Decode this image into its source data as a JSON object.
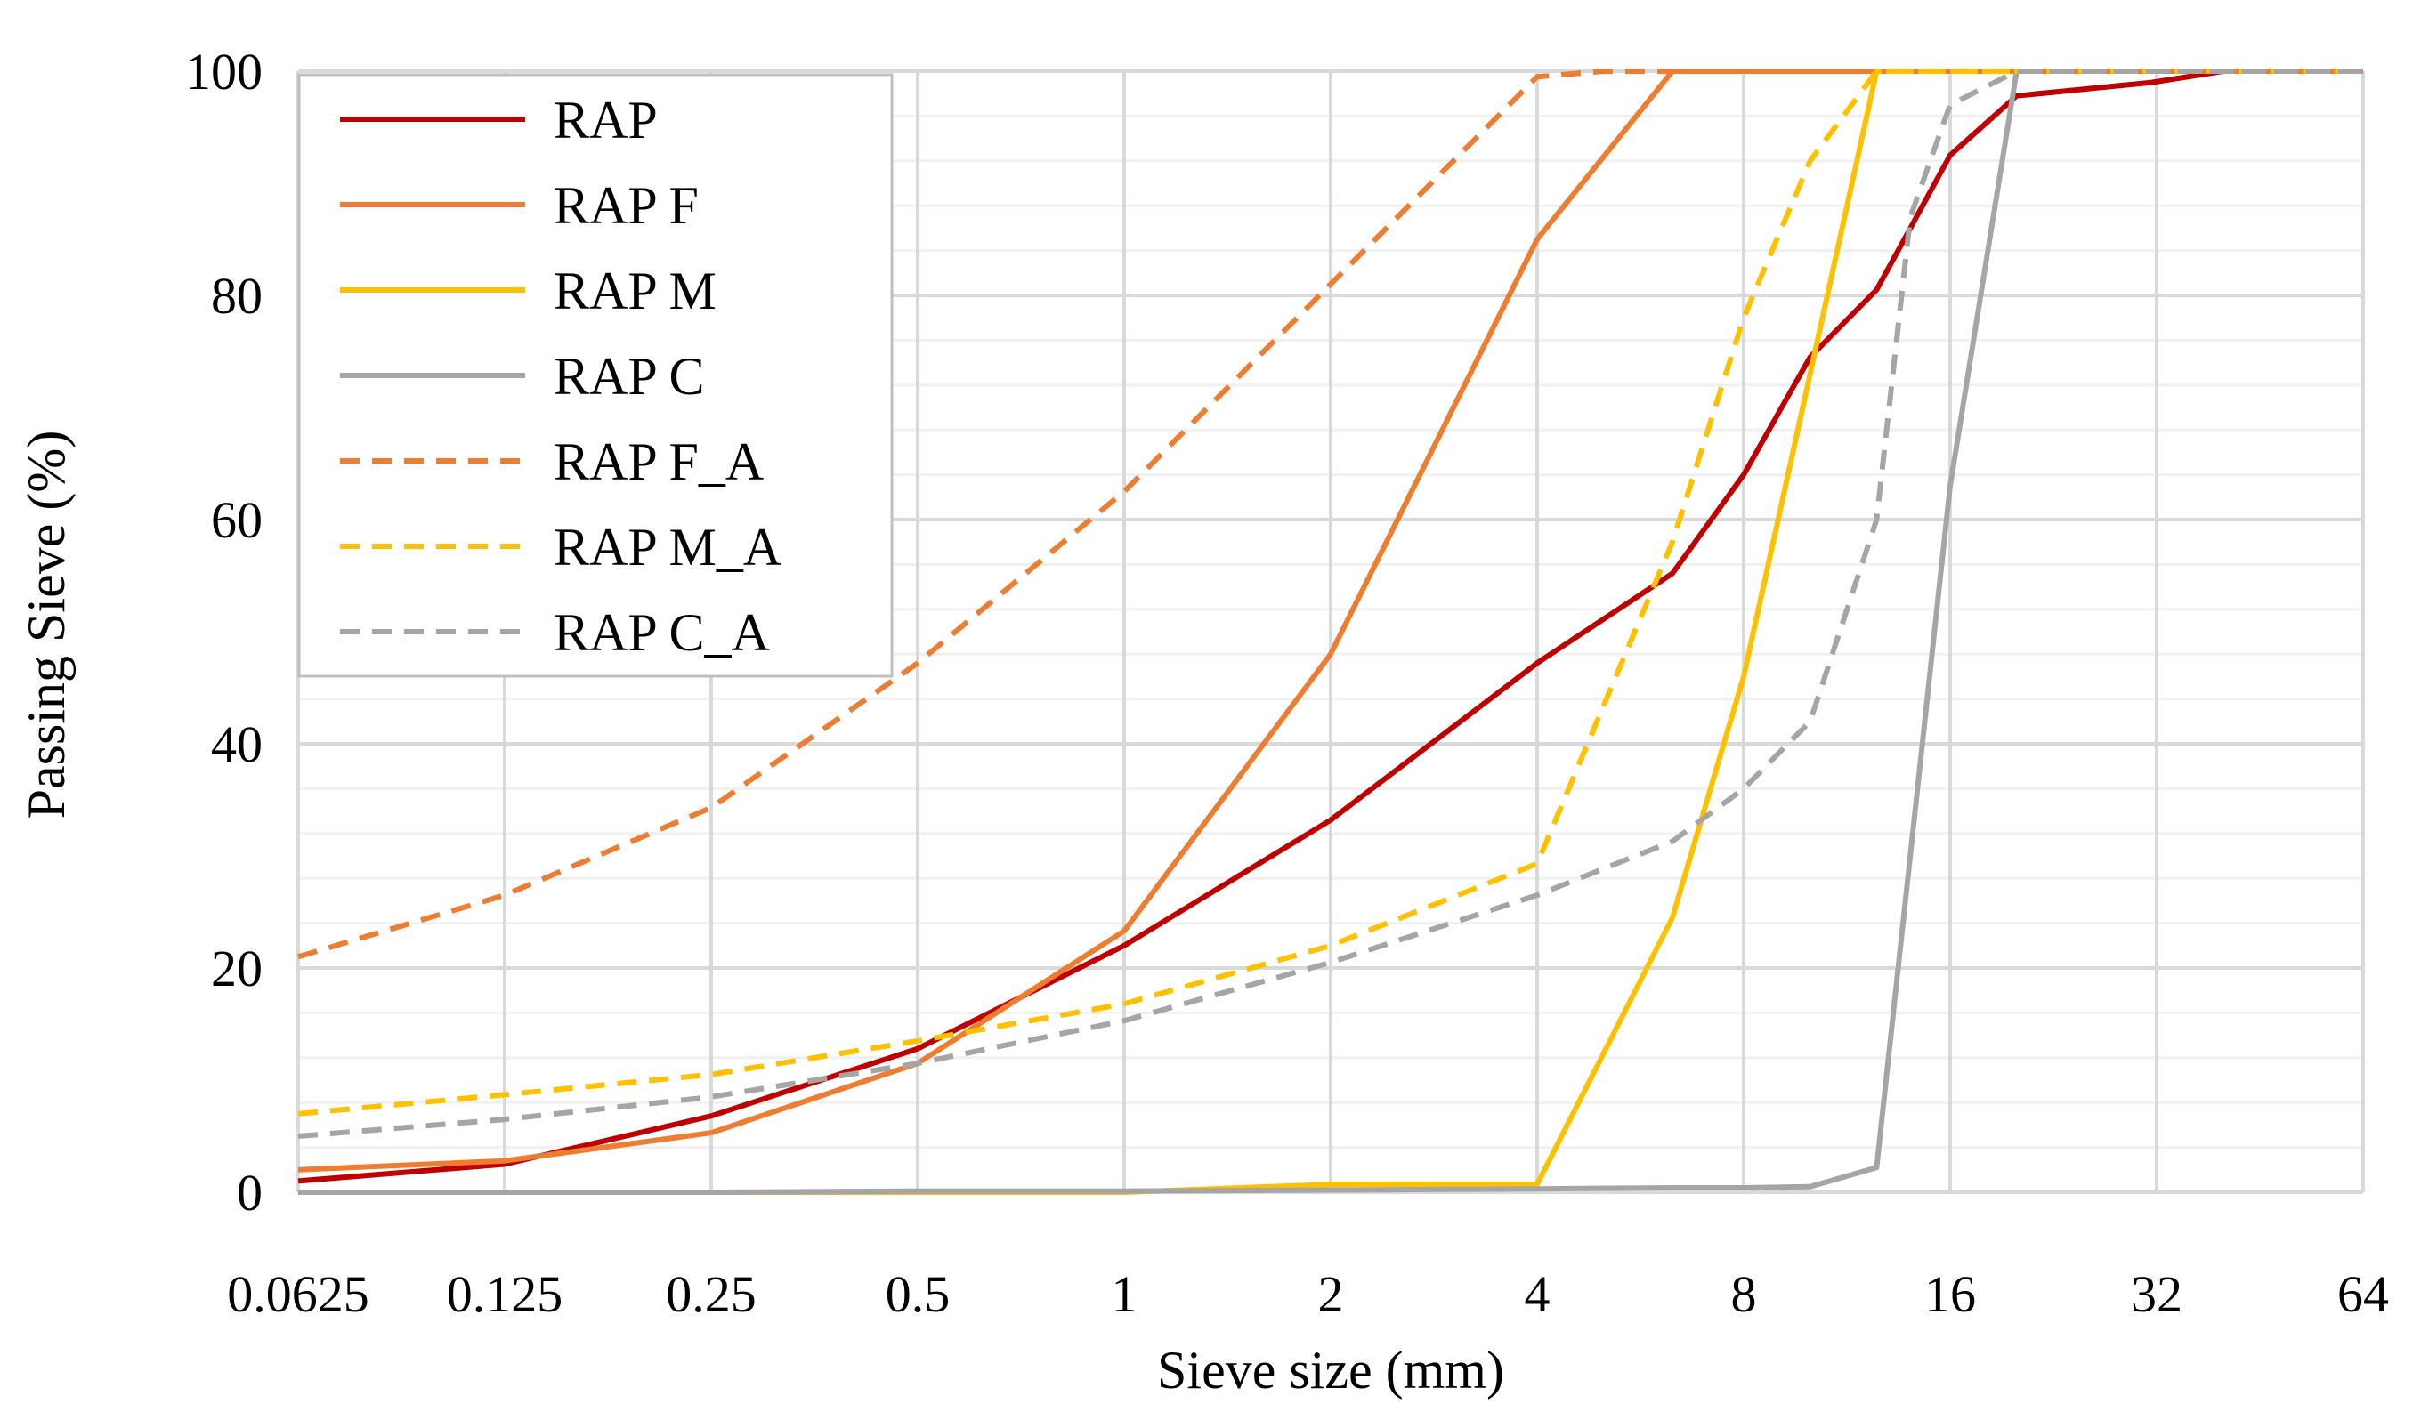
{
  "chart_data": {
    "type": "line",
    "title": "",
    "xlabel": "Sieve size (mm)",
    "ylabel": "Passing Sieve (%)",
    "x_scale": "log2",
    "xlim": [
      0.0625,
      64
    ],
    "ylim": [
      0,
      100
    ],
    "x_ticks": [
      {
        "value": 0.0625,
        "label": "0.0625"
      },
      {
        "value": 0.125,
        "label": "0.125"
      },
      {
        "value": 0.25,
        "label": "0.25"
      },
      {
        "value": 0.5,
        "label": "0.5"
      },
      {
        "value": 1,
        "label": "1"
      },
      {
        "value": 2,
        "label": "2"
      },
      {
        "value": 4,
        "label": "4"
      },
      {
        "value": 8,
        "label": "8"
      },
      {
        "value": 16,
        "label": "16"
      },
      {
        "value": 32,
        "label": "32"
      },
      {
        "value": 64,
        "label": "64"
      }
    ],
    "y_ticks": [
      {
        "value": 0,
        "label": "0"
      },
      {
        "value": 20,
        "label": "20"
      },
      {
        "value": 40,
        "label": "40"
      },
      {
        "value": 60,
        "label": "60"
      },
      {
        "value": 80,
        "label": "80"
      },
      {
        "value": 100,
        "label": "100"
      }
    ],
    "y_minor_step": 4,
    "grid": true,
    "legend_position": "top-left",
    "series": [
      {
        "name": "RAP",
        "color": "#C00000",
        "dash": false,
        "x": [
          0.0625,
          0.125,
          0.25,
          0.5,
          1,
          2,
          4,
          6.3,
          8,
          10,
          12.5,
          14,
          16,
          20,
          31.5,
          40,
          64
        ],
        "y": [
          1,
          2.5,
          6.8,
          12.8,
          22,
          33.2,
          47.2,
          55.2,
          64,
          74.5,
          80.5,
          86,
          92.5,
          97.8,
          99,
          100,
          100
        ]
      },
      {
        "name": "RAP F",
        "color": "#ED7D31",
        "dash": false,
        "x": [
          0.0625,
          0.125,
          0.25,
          0.5,
          1,
          2,
          4,
          6.3,
          8,
          12.5,
          16,
          64
        ],
        "y": [
          2,
          2.8,
          5.3,
          11.5,
          23.3,
          48,
          85,
          100,
          100,
          100,
          100,
          100
        ]
      },
      {
        "name": "RAP M",
        "color": "#FFC000",
        "dash": false,
        "x": [
          0.0625,
          0.125,
          0.25,
          0.5,
          1,
          2,
          4,
          6.3,
          8,
          12.5,
          16,
          64
        ],
        "y": [
          0,
          0,
          0,
          0,
          0,
          0.7,
          0.7,
          24.5,
          46,
          100,
          100,
          100
        ]
      },
      {
        "name": "RAP C",
        "color": "#A5A5A5",
        "dash": false,
        "x": [
          0.0625,
          0.125,
          0.25,
          0.5,
          1,
          2,
          4,
          6.3,
          8,
          10,
          12.5,
          16,
          20,
          64
        ],
        "y": [
          0,
          0,
          0,
          0.1,
          0.1,
          0.2,
          0.3,
          0.4,
          0.4,
          0.5,
          2.2,
          63,
          100,
          100
        ]
      },
      {
        "name": "RAP F_A",
        "color": "#ED7D31",
        "dash": true,
        "x": [
          0.0625,
          0.125,
          0.25,
          0.5,
          1,
          2,
          4,
          5,
          8,
          64
        ],
        "y": [
          21,
          26.5,
          34.3,
          47.2,
          62.5,
          81,
          99.5,
          100,
          100,
          100
        ]
      },
      {
        "name": "RAP M_A",
        "color": "#FFC000",
        "dash": true,
        "x": [
          0.0625,
          0.125,
          0.25,
          0.5,
          1,
          2,
          4,
          6.3,
          8,
          10,
          12.5,
          16,
          64
        ],
        "y": [
          7,
          8.7,
          10.5,
          13.5,
          16.8,
          22,
          29.3,
          58,
          78,
          92,
          100,
          100,
          100
        ]
      },
      {
        "name": "RAP C_A",
        "color": "#A5A5A5",
        "dash": true,
        "x": [
          0.0625,
          0.125,
          0.25,
          0.5,
          1,
          2,
          4,
          6.3,
          8,
          10,
          12.5,
          14,
          16,
          20,
          64
        ],
        "y": [
          5,
          6.5,
          8.5,
          11.5,
          15.3,
          20.5,
          26.5,
          31.3,
          36,
          42,
          60,
          87,
          97,
          100,
          100
        ]
      }
    ]
  }
}
